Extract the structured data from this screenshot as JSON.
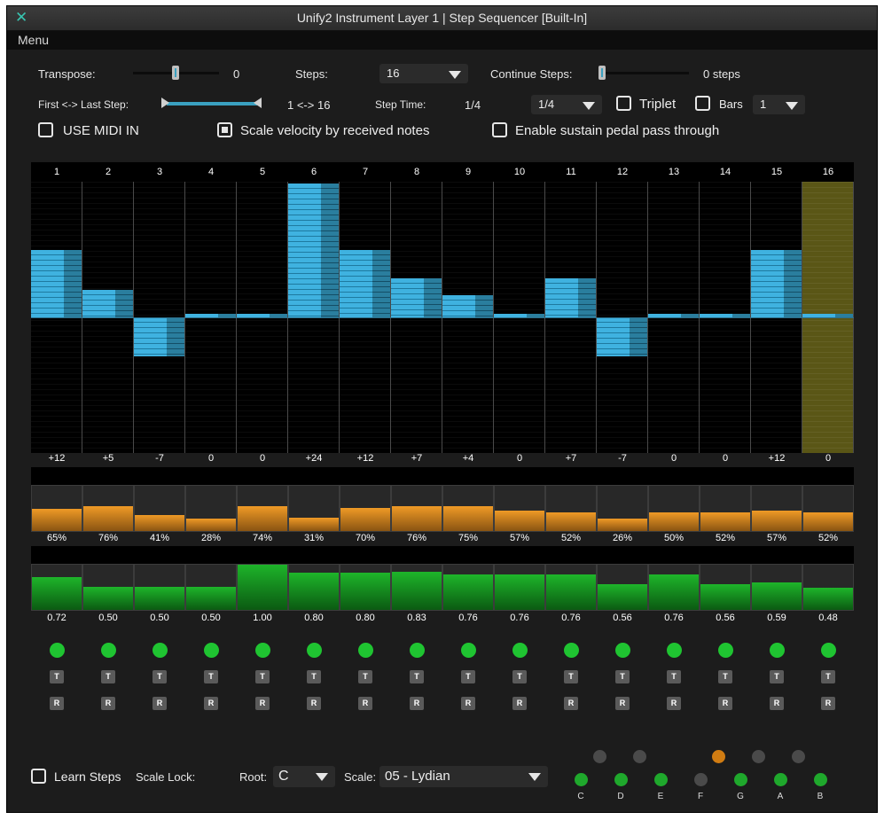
{
  "window": {
    "title": "Unify2 Instrument Layer 1 | Step Sequencer [Built-In]",
    "menu_label": "Menu"
  },
  "controls": {
    "transpose_label": "Transpose:",
    "transpose_value": "0",
    "steps_label": "Steps:",
    "steps_value": "16",
    "continue_steps_label": "Continue Steps:",
    "continue_steps_value": "0 steps",
    "first_last_label": "First <-> Last Step:",
    "first_last_value": "1 <-> 16",
    "step_time_label": "Step Time:",
    "step_time_value": "1/4",
    "step_time_select": "1/4",
    "triplet_label": "Triplet",
    "triplet_checked": false,
    "bars_label": "Bars",
    "bars_checked": false,
    "bars_select": "1",
    "use_midi_in_label": "USE MIDI IN",
    "use_midi_in_checked": false,
    "scale_velocity_label": "Scale velocity by received notes",
    "scale_velocity_checked": true,
    "sustain_label": "Enable sustain pedal pass through",
    "sustain_checked": false
  },
  "steps": {
    "numbers": [
      "1",
      "2",
      "3",
      "4",
      "5",
      "6",
      "7",
      "8",
      "9",
      "10",
      "11",
      "12",
      "13",
      "14",
      "15",
      "16"
    ],
    "pitch_labels": [
      "+12",
      "+5",
      "-7",
      "0",
      "0",
      "+24",
      "+12",
      "+7",
      "+4",
      "0",
      "+7",
      "-7",
      "0",
      "0",
      "+12",
      "0"
    ],
    "pitch_values": [
      12,
      5,
      -7,
      0,
      0,
      24,
      12,
      7,
      4,
      0,
      7,
      -7,
      0,
      0,
      12,
      0
    ],
    "active_step": 16,
    "velocity_labels": [
      "65%",
      "76%",
      "41%",
      "28%",
      "74%",
      "31%",
      "70%",
      "76%",
      "75%",
      "57%",
      "52%",
      "26%",
      "50%",
      "52%",
      "57%",
      "52%"
    ],
    "velocity_values": [
      65,
      76,
      41,
      28,
      74,
      31,
      70,
      76,
      75,
      57,
      52,
      26,
      50,
      52,
      57,
      52
    ],
    "gate_labels": [
      "0.72",
      "0.50",
      "0.50",
      "0.50",
      "1.00",
      "0.80",
      "0.80",
      "0.83",
      "0.76",
      "0.76",
      "0.76",
      "0.56",
      "0.76",
      "0.56",
      "0.59",
      "0.48"
    ],
    "gate_values": [
      0.72,
      0.5,
      0.5,
      0.5,
      1.0,
      0.8,
      0.8,
      0.83,
      0.76,
      0.76,
      0.76,
      0.56,
      0.76,
      0.56,
      0.59,
      0.48
    ],
    "tie_label": "T",
    "reset_label": "R"
  },
  "footer": {
    "learn_steps_label": "Learn Steps",
    "learn_steps_checked": false,
    "scale_lock_label": "Scale Lock:",
    "root_label": "Root:",
    "root_value": "C",
    "scale_label": "Scale:",
    "scale_value": "05 - Lydian",
    "keys_natural": [
      "C",
      "D",
      "E",
      "F",
      "G",
      "A",
      "B"
    ],
    "keys_natural_on": [
      true,
      true,
      true,
      false,
      true,
      true,
      true
    ],
    "keys_sharp_on": [
      false,
      false,
      true,
      false,
      false
    ],
    "colors": {
      "on": "#1fa82c",
      "off": "#4a4a4a",
      "highlight": "#d07c12"
    }
  }
}
